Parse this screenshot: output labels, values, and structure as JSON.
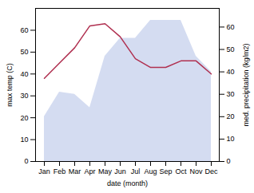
{
  "chart_data": {
    "type": "line",
    "categories": [
      "Jan",
      "Feb",
      "Mar",
      "Apr",
      "May",
      "Jun",
      "Jul",
      "Aug",
      "Sep",
      "Oct",
      "Nov",
      "Dec"
    ],
    "xlabel": "date (month)",
    "ylabel": "max temp (C)",
    "y2label": "med. precipitation (kg/m2)",
    "ylim": [
      0,
      70
    ],
    "yticks": [
      0,
      10,
      20,
      30,
      40,
      50,
      60
    ],
    "y2lim": [
      0,
      68.33
    ],
    "y2ticks": [
      0,
      10,
      20,
      30,
      40,
      50,
      60
    ],
    "series": [
      {
        "type": "area",
        "axis": "y2",
        "color": "#b8c4e8",
        "values": [
          20,
          31,
          30,
          24,
          47,
          55,
          55,
          63,
          63,
          63,
          47,
          40
        ]
      },
      {
        "type": "line",
        "color": "#b03050",
        "values": [
          38,
          45,
          52,
          62,
          63,
          57,
          47,
          43,
          43,
          46,
          46,
          40
        ]
      }
    ]
  }
}
